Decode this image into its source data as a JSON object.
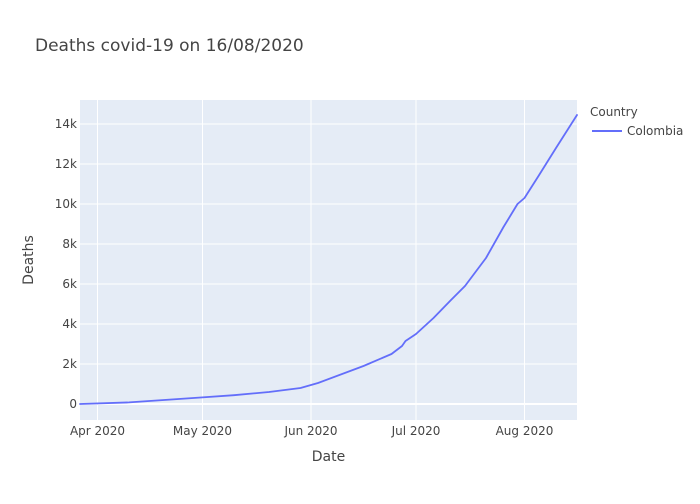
{
  "chart_data": {
    "type": "line",
    "title": "Deaths covid-19 on 16/08/2020",
    "xlabel": "Date",
    "ylabel": "Deaths",
    "xlim": [
      "2020-03-27",
      "2020-08-16"
    ],
    "ylim": [
      -800,
      15200
    ],
    "x_ticks": [
      {
        "date": "2020-04-01",
        "label": "Apr 2020"
      },
      {
        "date": "2020-05-01",
        "label": "May 2020"
      },
      {
        "date": "2020-06-01",
        "label": "Jun 2020"
      },
      {
        "date": "2020-07-01",
        "label": "Jul 2020"
      },
      {
        "date": "2020-08-01",
        "label": "Aug 2020"
      }
    ],
    "y_ticks": [
      {
        "value": 0,
        "label": "0"
      },
      {
        "value": 2000,
        "label": "2k"
      },
      {
        "value": 4000,
        "label": "4k"
      },
      {
        "value": 6000,
        "label": "6k"
      },
      {
        "value": 8000,
        "label": "8k"
      },
      {
        "value": 10000,
        "label": "10k"
      },
      {
        "value": 12000,
        "label": "12k"
      },
      {
        "value": 14000,
        "label": "14k"
      }
    ],
    "grid": true,
    "legend": {
      "title": "Country",
      "position": "top-right"
    },
    "series": [
      {
        "name": "Colombia",
        "color": "#636efa",
        "x": [
          "2020-03-27",
          "2020-04-10",
          "2020-04-20",
          "2020-05-01",
          "2020-05-10",
          "2020-05-20",
          "2020-05-29",
          "2020-06-03",
          "2020-06-16",
          "2020-06-24",
          "2020-06-27",
          "2020-06-28",
          "2020-07-01",
          "2020-07-06",
          "2020-07-11",
          "2020-07-15",
          "2020-07-21",
          "2020-07-26",
          "2020-07-30",
          "2020-08-01",
          "2020-08-05",
          "2020-08-10",
          "2020-08-16"
        ],
        "y": [
          0,
          80,
          200,
          330,
          440,
          600,
          800,
          1050,
          1900,
          2500,
          2900,
          3150,
          3500,
          4300,
          5200,
          5900,
          7300,
          8850,
          10000,
          10300,
          11400,
          12800,
          14450
        ]
      }
    ]
  }
}
